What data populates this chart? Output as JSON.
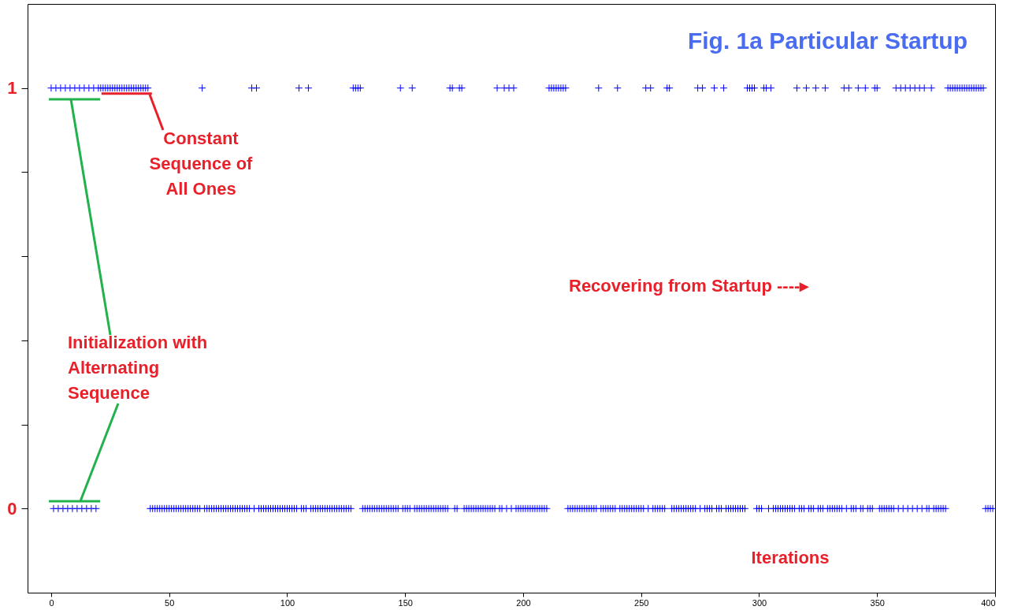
{
  "chart_data": {
    "type": "scatter",
    "title": "Fig. 1a  Particular Startup",
    "xlabel": "Iterations",
    "annotations": [
      {
        "text": "Constant Sequence of All Ones",
        "x": 32,
        "y": 1
      },
      "Initialization with Alternating Sequence",
      "Recovering from Startup ----▸"
    ],
    "xlim": [
      -10,
      400
    ],
    "xticks": [
      0,
      50,
      100,
      150,
      200,
      250,
      300,
      350,
      400
    ],
    "ylim": [
      -0.2,
      1.2
    ],
    "yticks": [
      0,
      {
        "value": 0.2,
        "label": null
      },
      {
        "value": 0.4,
        "label": null
      },
      {
        "value": 0.6,
        "label": null
      },
      {
        "value": 0.8,
        "label": null
      },
      1
    ],
    "grid": false,
    "marker": "cross",
    "series": [
      {
        "color": "#0000ff",
        "x": [
          0,
          1,
          2,
          3,
          4,
          5,
          6,
          7,
          8,
          9,
          10,
          11,
          12,
          13,
          14,
          15,
          16,
          17,
          18,
          19,
          20,
          21,
          22,
          23,
          24,
          25,
          26,
          27,
          28,
          29,
          30,
          31,
          32,
          33,
          34,
          35,
          36,
          37,
          38,
          39,
          40,
          41,
          42,
          43,
          44,
          45,
          46,
          47,
          48,
          49,
          50,
          51,
          52,
          53,
          54,
          55,
          56,
          57,
          58,
          59,
          60,
          61,
          62,
          63,
          64,
          65,
          66,
          67,
          68,
          69,
          70,
          71,
          72,
          73,
          74,
          75,
          76,
          77,
          78,
          79,
          80,
          81,
          82,
          83,
          84,
          85,
          86,
          87,
          88,
          89,
          90,
          91,
          92,
          93,
          94,
          95,
          96,
          97,
          98,
          99,
          100,
          101,
          102,
          103,
          104,
          105,
          106,
          107,
          108,
          109,
          110,
          111,
          112,
          113,
          114,
          115,
          116,
          117,
          118,
          119,
          120,
          121,
          122,
          123,
          124,
          125,
          126,
          127,
          128,
          129,
          130,
          131,
          132,
          133,
          134,
          135,
          136,
          137,
          138,
          139,
          140,
          141,
          142,
          143,
          144,
          145,
          146,
          147,
          148,
          149,
          150,
          151,
          152,
          153,
          154,
          155,
          156,
          157,
          158,
          159,
          160,
          161,
          162,
          163,
          164,
          165,
          166,
          167,
          168,
          169,
          170,
          171,
          172,
          173,
          174,
          175,
          176,
          177,
          178,
          179,
          180,
          181,
          182,
          183,
          184,
          185,
          186,
          187,
          188,
          189,
          190,
          191,
          192,
          193,
          194,
          195,
          196,
          197,
          198,
          199,
          200,
          201,
          202,
          203,
          204,
          205,
          206,
          207,
          208,
          209,
          210,
          211,
          212,
          213,
          214,
          215,
          216,
          217,
          218,
          219,
          220,
          221,
          222,
          223,
          224,
          225,
          226,
          227,
          228,
          229,
          230,
          231,
          232,
          233,
          234,
          235,
          236,
          237,
          238,
          239,
          240,
          241,
          242,
          243,
          244,
          245,
          246,
          247,
          248,
          249,
          250,
          251,
          252,
          253,
          254,
          255,
          256,
          257,
          258,
          259,
          260,
          261,
          262,
          263,
          264,
          265,
          266,
          267,
          268,
          269,
          270,
          271,
          272,
          273,
          274,
          275,
          276,
          277,
          278,
          279,
          280,
          281,
          282,
          283,
          284,
          285,
          286,
          287,
          288,
          289,
          290,
          291,
          292,
          293,
          294,
          295,
          296,
          297,
          298,
          299,
          300,
          301,
          302,
          303,
          304,
          305,
          306,
          307,
          308,
          309,
          310,
          311,
          312,
          313,
          314,
          315,
          316,
          317,
          318,
          319,
          320,
          321,
          322,
          323,
          324,
          325,
          326,
          327,
          328,
          329,
          330,
          331,
          332,
          333,
          334,
          335,
          336,
          337,
          338,
          339,
          340,
          341,
          342,
          343,
          344,
          345,
          346,
          347,
          348,
          349,
          350,
          351,
          352,
          353,
          354,
          355,
          356,
          357,
          358,
          359,
          360,
          361,
          362,
          363,
          364,
          365,
          366,
          367,
          368,
          369,
          370,
          371,
          372,
          373,
          374,
          375,
          376,
          377,
          378,
          379,
          380,
          381,
          382,
          383,
          384,
          385,
          386,
          387,
          388,
          389,
          390,
          391,
          392,
          393,
          394,
          395,
          396,
          397,
          398,
          399
        ],
        "values": [
          1,
          0,
          1,
          0,
          1,
          0,
          1,
          0,
          1,
          0,
          1,
          0,
          1,
          0,
          1,
          0,
          1,
          0,
          1,
          0,
          1,
          1,
          1,
          1,
          1,
          1,
          1,
          1,
          1,
          1,
          1,
          1,
          1,
          1,
          1,
          1,
          1,
          1,
          1,
          1,
          1,
          1,
          0,
          0,
          0,
          0,
          0,
          0,
          0,
          0,
          0,
          0,
          0,
          0,
          0,
          0,
          0,
          0,
          0,
          0,
          0,
          0,
          0,
          0,
          1,
          0,
          0,
          0,
          0,
          0,
          0,
          0,
          0,
          0,
          0,
          0,
          0,
          0,
          0,
          0,
          0,
          0,
          0,
          0,
          0,
          1,
          0,
          1,
          0,
          0,
          0,
          0,
          0,
          0,
          0,
          0,
          0,
          0,
          0,
          0,
          0,
          0,
          0,
          0,
          0,
          1,
          0,
          0,
          0,
          1,
          0,
          0,
          0,
          0,
          0,
          0,
          0,
          0,
          0,
          0,
          0,
          0,
          0,
          0,
          0,
          0,
          0,
          0,
          1,
          1,
          1,
          1,
          0,
          0,
          0,
          0,
          0,
          0,
          0,
          0,
          0,
          0,
          0,
          0,
          0,
          0,
          0,
          0,
          1,
          0,
          0,
          0,
          0,
          1,
          0,
          0,
          0,
          0,
          0,
          0,
          0,
          0,
          0,
          0,
          0,
          0,
          0,
          0,
          0,
          1,
          1,
          0,
          0,
          1,
          1,
          0,
          0,
          0,
          0,
          0,
          0,
          0,
          0,
          0,
          0,
          0,
          0,
          0,
          0,
          1,
          0,
          0,
          1,
          0,
          1,
          0,
          1,
          0,
          0,
          0,
          0,
          0,
          0,
          0,
          0,
          0,
          0,
          0,
          0,
          0,
          0,
          1,
          1,
          1,
          1,
          1,
          1,
          1,
          1,
          0,
          0,
          0,
          0,
          0,
          0,
          0,
          0,
          0,
          0,
          0,
          0,
          0,
          1,
          0,
          0,
          0,
          0,
          0,
          0,
          0,
          1,
          0,
          0,
          0,
          0,
          0,
          0,
          0,
          0,
          0,
          0,
          0,
          1,
          0,
          1,
          0,
          0,
          0,
          0,
          0,
          0,
          1,
          1,
          0,
          0,
          0,
          0,
          0,
          0,
          0,
          0,
          0,
          0,
          0,
          1,
          0,
          1,
          0,
          0,
          0,
          0,
          1,
          0,
          0,
          0,
          1,
          0,
          0,
          0,
          0,
          0,
          0,
          0,
          0,
          0,
          1,
          1,
          1,
          1,
          0,
          0,
          0,
          1,
          1,
          0,
          1,
          0,
          0,
          0,
          0,
          0,
          0,
          0,
          0,
          0,
          0,
          1,
          0,
          0,
          0,
          1,
          0,
          0,
          0,
          1,
          0,
          0,
          0,
          1,
          0,
          0,
          0,
          0,
          0,
          0,
          0,
          1,
          0,
          1,
          0,
          0,
          0,
          1,
          0,
          0,
          1,
          0,
          0,
          0,
          1,
          1,
          0,
          0,
          0,
          0,
          0,
          0,
          0,
          1,
          0,
          1,
          0,
          1,
          0,
          1,
          0,
          1,
          0,
          1,
          0,
          1,
          0,
          0,
          1,
          0,
          0,
          0,
          0,
          0,
          0,
          1,
          1,
          1,
          1,
          1,
          1,
          1,
          1,
          1,
          1,
          1,
          1,
          1,
          1,
          1,
          1,
          0,
          0,
          0,
          0
        ]
      }
    ]
  }
}
